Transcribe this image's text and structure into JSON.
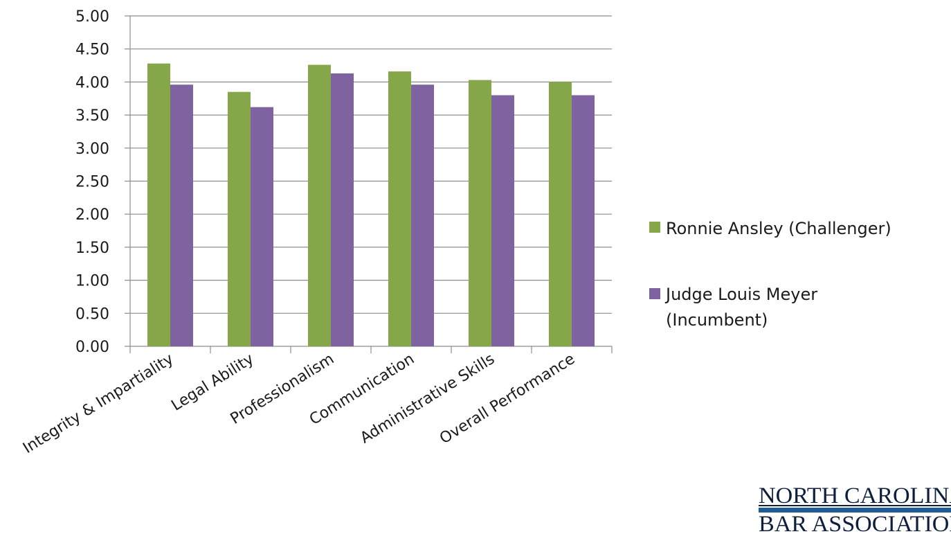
{
  "chart_data": {
    "type": "bar",
    "title": "",
    "xlabel": "",
    "ylabel": "",
    "categories": [
      "Integrity & Impartiality",
      "Legal Ability",
      "Professionalism",
      "Communication",
      "Administrative Skills",
      "Overall Performance"
    ],
    "series": [
      {
        "name": "Ronnie Ansley (Challenger)",
        "color": "#86a64a",
        "values": [
          4.28,
          3.85,
          4.26,
          4.16,
          4.03,
          4.0
        ]
      },
      {
        "name": "Judge Louis Meyer (Incumbent)",
        "name_lines": [
          "Judge Louis Meyer",
          "(Incumbent)"
        ],
        "color": "#7f63a1",
        "values": [
          3.96,
          3.62,
          4.13,
          3.96,
          3.8,
          3.8
        ]
      }
    ],
    "ylim": [
      0,
      5
    ],
    "yticks": [
      "0.00",
      "0.50",
      "1.00",
      "1.50",
      "2.00",
      "2.50",
      "3.00",
      "3.50",
      "4.00",
      "4.50",
      "5.00"
    ],
    "grid": true,
    "legend_position": "right"
  },
  "logo": {
    "line1": "NORTH CAROLINA",
    "line2": "BAR ASSOCIATION",
    "color": "#0e1f3d",
    "bar_color": "#1f5b96"
  }
}
